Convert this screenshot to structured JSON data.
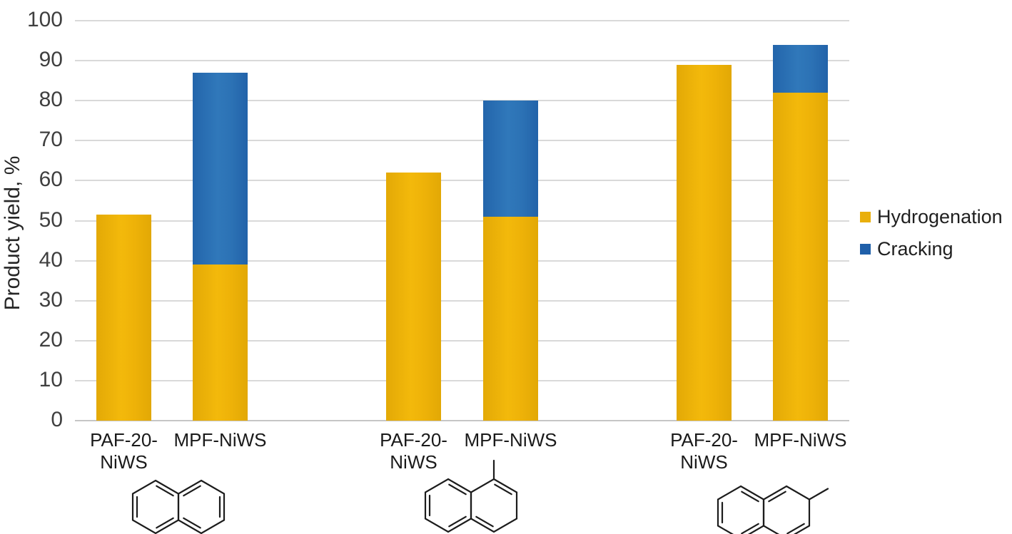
{
  "chart_data": {
    "type": "bar",
    "variant": "stacked-vertical",
    "title": "",
    "ylabel": "Product yield, %",
    "xlabel": "",
    "ylim": [
      0,
      100
    ],
    "ytick_step": 10,
    "grid": "horizontal",
    "legend_position": "right",
    "series_names": [
      "Hydrogenation",
      "Cracking"
    ],
    "groups": [
      {
        "substrate": "naphthalene",
        "bars": [
          {
            "catalyst": "PAF-20-NiWS",
            "label_lines": [
              "PAF-20-",
              "NiWS"
            ],
            "hydrogenation": 51.5,
            "cracking": 0
          },
          {
            "catalyst": "MPF-NiWS",
            "label_lines": [
              "MPF-NiWS"
            ],
            "hydrogenation": 39,
            "cracking": 48
          }
        ]
      },
      {
        "substrate": "1-methylnaphthalene",
        "bars": [
          {
            "catalyst": "PAF-20-NiWS",
            "label_lines": [
              "PAF-20-",
              "NiWS"
            ],
            "hydrogenation": 62,
            "cracking": 0
          },
          {
            "catalyst": "MPF-NiWS",
            "label_lines": [
              "MPF-NiWS"
            ],
            "hydrogenation": 51,
            "cracking": 29
          }
        ]
      },
      {
        "substrate": "2-methylnaphthalene",
        "bars": [
          {
            "catalyst": "PAF-20-NiWS",
            "label_lines": [
              "PAF-20-",
              "NiWS"
            ],
            "hydrogenation": 89,
            "cracking": 0
          },
          {
            "catalyst": "MPF-NiWS",
            "label_lines": [
              "MPF-NiWS"
            ],
            "hydrogenation": 82,
            "cracking": 12
          }
        ]
      }
    ],
    "legend": [
      {
        "label": "Hydrogenation",
        "color": "#e9af0c"
      },
      {
        "label": "Cracking",
        "color": "#1f5fa9"
      }
    ],
    "colors": {
      "hydrogenation": "#edb10c",
      "cracking": "#2e74b5",
      "gridline": "#d9d9d9",
      "tick_text": "#3f3f3f",
      "label_text": "#1a1a1a"
    }
  }
}
